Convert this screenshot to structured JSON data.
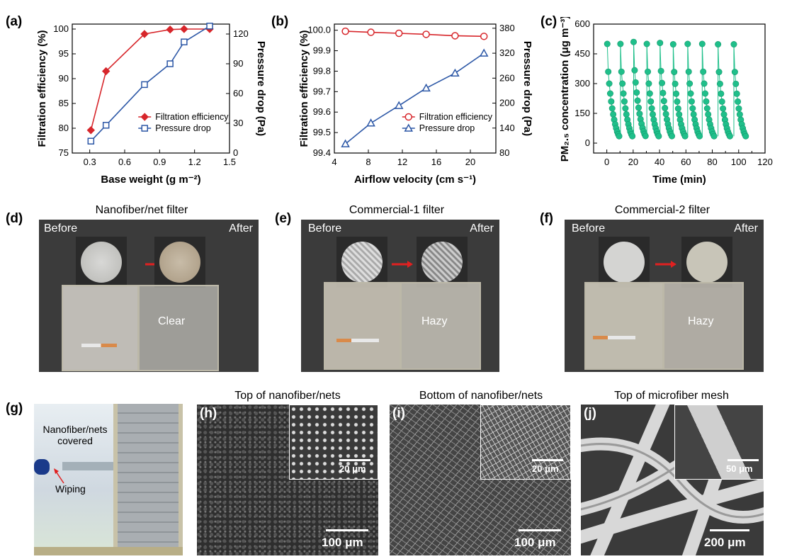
{
  "panels": {
    "a": {
      "label": "(a)"
    },
    "b": {
      "label": "(b)"
    },
    "c": {
      "label": "(c)"
    },
    "d": {
      "label": "(d)",
      "title": "Nanofiber/net filter",
      "before": "Before",
      "after": "After",
      "result": "Clear"
    },
    "e": {
      "label": "(e)",
      "title": "Commercial-1 filter",
      "before": "Before",
      "after": "After",
      "result": "Hazy"
    },
    "f": {
      "label": "(f)",
      "title": "Commercial-2 filter",
      "before": "Before",
      "after": "After",
      "result": "Hazy"
    },
    "g": {
      "label": "(g)",
      "covered": "Nanofiber/nets covered",
      "wiping": "Wiping"
    },
    "h": {
      "label": "(h)",
      "title": "Top of nanofiber/nets",
      "scale_main": "100 μm",
      "scale_inset": "20 μm"
    },
    "i": {
      "label": "(i)",
      "title": "Bottom of nanofiber/nets",
      "scale_main": "100 μm",
      "scale_inset": "20 μm"
    },
    "j": {
      "label": "(j)",
      "title": "Top of microfiber mesh",
      "scale_main": "200 μm",
      "scale_inset": "50 μm"
    }
  },
  "chart_data": [
    {
      "id": "a",
      "type": "line",
      "xlabel": "Base weight (g m⁻²)",
      "ylabel_left": "Filtration efficiency (%)",
      "ylabel_right": "Pressure drop (Pa)",
      "xlim": [
        0.15,
        1.5
      ],
      "xticks": [
        "0.3",
        "0.6",
        "0.9",
        "1.2",
        "1.5"
      ],
      "ylim_left": [
        75,
        101
      ],
      "yticks_left": [
        "75",
        "80",
        "85",
        "90",
        "95",
        "100"
      ],
      "ylim_right": [
        0,
        130
      ],
      "yticks_right": [
        "0",
        "30",
        "60",
        "90",
        "120"
      ],
      "series": [
        {
          "name": "Filtration efficiency",
          "axis": "left",
          "color": "#d7262b",
          "marker": "diamond",
          "x": [
            0.31,
            0.44,
            0.77,
            0.99,
            1.11,
            1.33
          ],
          "y": [
            79.6,
            91.5,
            99.0,
            99.9,
            100.0,
            100.0
          ]
        },
        {
          "name": "Pressure drop",
          "axis": "right",
          "color": "#2c57a6",
          "marker": "square",
          "x": [
            0.31,
            0.44,
            0.77,
            0.99,
            1.11,
            1.33
          ],
          "y": [
            12,
            28,
            69,
            90,
            112,
            128
          ]
        }
      ],
      "legend": "bottom-right"
    },
    {
      "id": "b",
      "type": "line",
      "xlabel": "Airflow velocity (cm s⁻¹)",
      "ylabel_left": "Filtration efficiency (%)",
      "ylabel_right": "Pressure drop (Pa)",
      "xlim": [
        4,
        23
      ],
      "xticks": [
        "4",
        "8",
        "12",
        "16",
        "20"
      ],
      "ylim_left": [
        99.4,
        100.03
      ],
      "yticks_left": [
        "99.4",
        "99.5",
        "99.6",
        "99.7",
        "99.8",
        "99.9",
        "100.0"
      ],
      "ylim_right": [
        80,
        390
      ],
      "yticks_right": [
        "80",
        "140",
        "200",
        "260",
        "320",
        "380"
      ],
      "series": [
        {
          "name": "Filtration efficiency",
          "axis": "left",
          "color": "#d7262b",
          "marker": "circle",
          "x": [
            5.3,
            8.3,
            11.6,
            14.8,
            18.2,
            21.6
          ],
          "y": [
            99.995,
            99.99,
            99.985,
            99.98,
            99.973,
            99.97
          ]
        },
        {
          "name": "Pressure drop",
          "axis": "right",
          "color": "#2c57a6",
          "marker": "triangle",
          "x": [
            5.3,
            8.3,
            11.6,
            14.8,
            18.2,
            21.6
          ],
          "y": [
            102,
            152,
            194,
            236,
            272,
            320
          ]
        }
      ],
      "legend": "bottom-right"
    },
    {
      "id": "c",
      "type": "scatter",
      "xlabel": "Time (min)",
      "ylabel": "PM₂.₅ concentration (μg m⁻³)",
      "xlim": [
        -10,
        120
      ],
      "xticks": [
        "0",
        "10",
        "20",
        "30",
        "40",
        "50",
        "60",
        "70",
        "80",
        "90",
        "100",
        "110",
        "120"
      ],
      "ylim": [
        -50,
        600
      ],
      "yticks": [
        "0",
        "150",
        "300",
        "450",
        "600"
      ],
      "color": "#1fbf8a",
      "cycles": [
        {
          "start": 0,
          "peak": 500
        },
        {
          "start": 10,
          "peak": 500
        },
        {
          "start": 20,
          "peak": 510
        },
        {
          "start": 30,
          "peak": 500
        },
        {
          "start": 40,
          "peak": 505
        },
        {
          "start": 50,
          "peak": 498
        },
        {
          "start": 61,
          "peak": 500
        },
        {
          "start": 72,
          "peak": 500
        },
        {
          "start": 84,
          "peak": 498
        },
        {
          "start": 96,
          "peak": 498
        }
      ],
      "decay_points_y": [
        500,
        360,
        300,
        250,
        210,
        175,
        145,
        118,
        95,
        75,
        58,
        45,
        35
      ]
    }
  ]
}
